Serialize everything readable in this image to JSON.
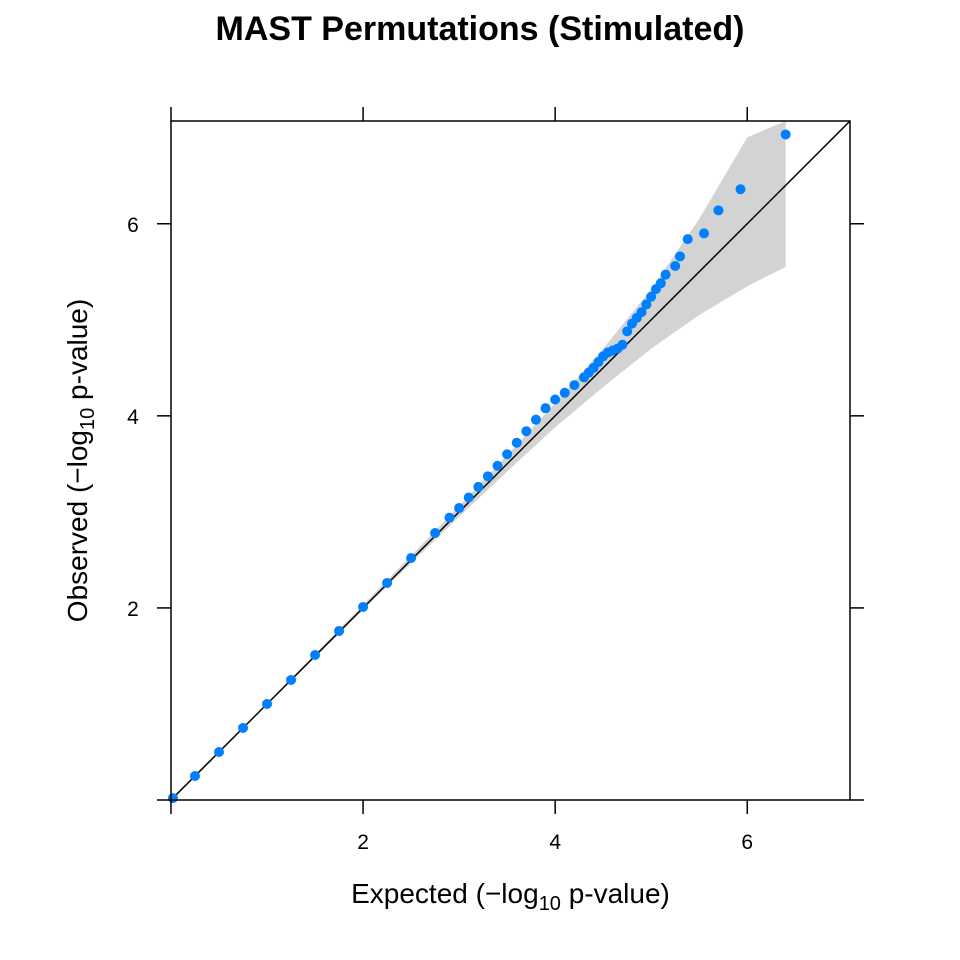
{
  "chart_data": {
    "type": "scatter",
    "title": "MAST Permutations (Stimulated)",
    "xlabel": {
      "prefix": "Expected (−log",
      "sub": "10",
      "suffix": " p-value)"
    },
    "ylabel": {
      "prefix": "Observed (−log",
      "sub": "10",
      "suffix": " p-value)"
    },
    "xlim": [
      0,
      7.07
    ],
    "ylim": [
      0,
      7.07
    ],
    "xticks": [
      "2",
      "4",
      "6"
    ],
    "yticks": [
      "2",
      "4",
      "6"
    ],
    "grid": false,
    "reference_line": {
      "x": [
        0,
        7.07
      ],
      "y": [
        0,
        7.07
      ]
    },
    "confidence_band": {
      "x": [
        0.0,
        1.0,
        2.0,
        3.0,
        3.5,
        4.0,
        4.5,
        5.0,
        5.5,
        6.0,
        6.4
      ],
      "lower": [
        0.0,
        0.99,
        1.98,
        2.95,
        3.42,
        3.88,
        4.3,
        4.7,
        5.05,
        5.35,
        5.55
      ],
      "upper": [
        0.02,
        1.01,
        2.03,
        3.06,
        3.59,
        4.13,
        4.7,
        5.32,
        6.05,
        6.9,
        7.07
      ]
    },
    "series": [
      {
        "color": "#0080ff",
        "x": [
          0.02,
          0.25,
          0.5,
          0.75,
          1.0,
          1.25,
          1.5,
          1.75,
          2.0,
          2.25,
          2.5,
          2.75,
          2.9,
          3.0,
          3.1,
          3.2,
          3.3,
          3.4,
          3.5,
          3.6,
          3.7,
          3.8,
          3.9,
          4.0,
          4.1,
          4.2,
          4.3,
          4.35,
          4.4,
          4.45,
          4.5,
          4.55,
          4.6,
          4.65,
          4.7,
          4.75,
          4.8,
          4.85,
          4.9,
          4.95,
          5.0,
          5.05,
          5.1,
          5.15,
          5.25,
          5.3,
          5.38,
          5.55,
          5.7,
          5.93,
          6.4
        ],
        "y": [
          0.02,
          0.25,
          0.5,
          0.75,
          1.0,
          1.25,
          1.51,
          1.76,
          2.01,
          2.26,
          2.52,
          2.78,
          2.94,
          3.04,
          3.15,
          3.26,
          3.37,
          3.48,
          3.6,
          3.72,
          3.84,
          3.96,
          4.08,
          4.17,
          4.24,
          4.32,
          4.4,
          4.45,
          4.5,
          4.56,
          4.62,
          4.66,
          4.68,
          4.7,
          4.74,
          4.88,
          4.96,
          5.02,
          5.08,
          5.16,
          5.24,
          5.32,
          5.38,
          5.47,
          5.56,
          5.66,
          5.84,
          5.9,
          6.14,
          6.36,
          6.93
        ]
      }
    ]
  }
}
